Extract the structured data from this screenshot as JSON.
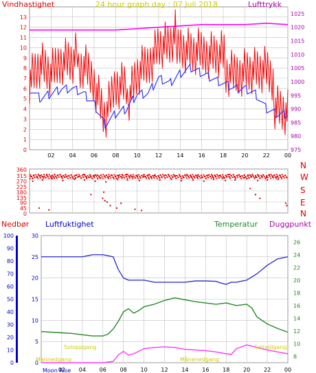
{
  "colors": {
    "background": "#ffffff",
    "plot_bg": "#ffffff",
    "grid": "#bfbfbf",
    "axis": "#9a9a9a",
    "wind": "#ff0000",
    "wind_avg": "#3333ff",
    "pressure": "#ff00ff",
    "direction": "#dd0000",
    "humidity": "#3333cc",
    "temperature": "#228822",
    "dewpoint": "#ff33ff",
    "rain": "#0000cc",
    "sunmoon": "#cccc00",
    "title": "#cccc00",
    "red_label": "#dd0000",
    "green_label": "#228822",
    "purple_label": "#aa00aa",
    "blue_label": "#0000cc"
  },
  "chart_data": [
    {
      "type": "line",
      "title": "24 hour graph day : 07 Juli 2018",
      "left_label": "Vindhastighet",
      "right_label": "Lufttrykk",
      "x_ticks": [
        "02",
        "04",
        "06",
        "08",
        "10",
        "12",
        "14",
        "16",
        "18",
        "20",
        "22",
        "00"
      ],
      "ylim": [
        0,
        14
      ],
      "y_ticks": [
        "0",
        "1",
        "2",
        "3",
        "4",
        "5",
        "6",
        "7",
        "8",
        "9",
        "10",
        "11",
        "12",
        "13"
      ],
      "y2lim": [
        975,
        1027.5
      ],
      "y2_ticks": [
        "975",
        "980",
        "985",
        "990",
        "995",
        "1000",
        "1005",
        "1010",
        "1015",
        "1020",
        "1025"
      ],
      "grid": true,
      "series": [
        {
          "name": "Vindhastighet",
          "axis": "left",
          "style": "gust",
          "x": [
            0,
            1,
            2,
            3,
            4,
            5,
            6,
            7,
            8,
            9,
            10,
            11,
            12,
            13,
            14,
            15,
            16,
            17,
            18,
            19,
            20,
            21,
            22,
            23,
            24
          ],
          "values": [
            8,
            9,
            7.5,
            8.5,
            8,
            9,
            7,
            3,
            6,
            5.5,
            8,
            8.5,
            10,
            9.5,
            11,
            10,
            9.5,
            9,
            8.5,
            8,
            8,
            7.5,
            7,
            5,
            4
          ]
        },
        {
          "name": "Vindhastighet middel",
          "axis": "left",
          "style": "avg",
          "x": [
            0,
            1,
            2,
            3,
            4,
            5,
            6,
            7,
            8,
            9,
            10,
            11,
            12,
            13,
            14,
            15,
            16,
            17,
            18,
            19,
            20,
            21,
            22,
            23,
            24
          ],
          "values": [
            6,
            5,
            5.5,
            6,
            6,
            5.5,
            4.5,
            2.5,
            3.5,
            4,
            5.5,
            5.5,
            7,
            6.5,
            7.5,
            8,
            7.5,
            7,
            6.5,
            6,
            6,
            5.5,
            4,
            3.5,
            3.5
          ]
        },
        {
          "name": "Lufttrykk",
          "axis": "right",
          "style": "pressure",
          "x": [
            0,
            2,
            4,
            6,
            8,
            10,
            12,
            14,
            16,
            18,
            20,
            22,
            24
          ],
          "values": [
            1019,
            1019,
            1019,
            1019,
            1019,
            1019.5,
            1020,
            1020.5,
            1021,
            1021,
            1021,
            1021.5,
            1021
          ]
        }
      ]
    },
    {
      "type": "scatter",
      "ylim": [
        0,
        360
      ],
      "y_ticks": [
        "0",
        "45",
        "90",
        "135",
        "180",
        "225",
        "270",
        "315",
        "360"
      ],
      "visible_y_tick_labels": [
        "360",
        "315",
        "270",
        "225",
        "180",
        "135",
        "90",
        "45",
        "0"
      ],
      "right_labels": [
        "N",
        "W",
        "S",
        "E",
        "N"
      ],
      "grid": true,
      "series": [
        {
          "name": "Vindretning",
          "x": [
            0.1,
            0.4,
            0.7,
            1.0,
            1.3,
            1.6,
            2.0,
            2.3,
            2.6,
            3.0,
            3.3,
            3.6,
            4.0,
            4.3,
            4.6,
            5.0,
            5.3,
            5.6,
            6.0,
            6.3,
            6.6,
            7.0,
            7.3,
            7.6,
            8.0,
            8.3,
            8.6,
            9.0,
            9.3,
            9.6,
            10.0,
            10.3,
            10.6,
            11.0,
            11.3,
            11.6,
            12.0,
            12.3,
            12.6,
            13.0,
            13.3,
            13.6,
            14.0,
            14.3,
            14.6,
            15.0,
            15.3,
            15.6,
            16.0,
            16.3,
            16.6,
            17.0,
            17.3,
            17.6,
            18.0,
            18.3,
            18.6,
            19.0,
            19.3,
            19.6,
            20.0,
            20.3,
            20.6,
            21.0,
            21.3,
            21.6,
            22.0,
            22.3,
            22.6,
            23.0,
            23.3,
            23.6,
            23.9,
            0.3,
            1.2,
            2.1,
            3.1,
            4.2,
            5.1,
            6.1,
            7.1,
            8.2,
            9.1,
            10.2,
            11.1,
            12.1,
            13.2,
            14.1,
            15.2,
            16.2,
            17.1,
            18.2,
            19.1,
            20.2,
            21.2,
            22.1,
            23.1,
            5.7,
            6.8,
            7.2,
            7.5,
            8.1,
            8.5,
            9.8,
            10.4,
            7.0,
            6.9,
            20.5,
            21.0,
            21.4,
            23.8,
            23.9,
            0.9,
            1.8
          ],
          "values": [
            300,
            310,
            290,
            305,
            295,
            315,
            300,
            285,
            310,
            300,
            295,
            305,
            290,
            310,
            300,
            315,
            295,
            290,
            305,
            310,
            285,
            300,
            295,
            310,
            300,
            305,
            290,
            315,
            300,
            295,
            305,
            290,
            300,
            310,
            295,
            305,
            300,
            290,
            310,
            300,
            295,
            305,
            300,
            290,
            310,
            300,
            295,
            305,
            290,
            300,
            310,
            295,
            300,
            305,
            290,
            300,
            315,
            295,
            305,
            300,
            290,
            310,
            300,
            295,
            305,
            300,
            290,
            310,
            300,
            295,
            305,
            300,
            290,
            260,
            270,
            280,
            265,
            275,
            270,
            260,
            255,
            275,
            270,
            265,
            280,
            270,
            275,
            265,
            270,
            260,
            275,
            265,
            270,
            280,
            265,
            270,
            275,
            150,
            120,
            90,
            60,
            40,
            80,
            30,
            20,
            100,
            170,
            200,
            150,
            120,
            80,
            60,
            40,
            25
          ]
        }
      ]
    },
    {
      "type": "line",
      "labels": [
        "Nedbør",
        "Luftfuktighet",
        "Temperatur",
        "Duggpunkt"
      ],
      "x_ticks": [
        "02",
        "04",
        "06",
        "08",
        "10",
        "12",
        "14",
        "16",
        "18",
        "20",
        "22",
        "00"
      ],
      "rain_axis": {
        "ylim": [
          0,
          100
        ],
        "ticks": [
          "0",
          "10",
          "20",
          "30",
          "40",
          "50",
          "60",
          "70",
          "80",
          "90",
          "100"
        ]
      },
      "humidity_axis": {
        "ylim": [
          0,
          30
        ],
        "ticks": [
          "0",
          "5",
          "10",
          "15",
          "20",
          "25",
          "30"
        ]
      },
      "temp_axis": {
        "ylim": [
          7,
          27
        ],
        "ticks": [
          "8",
          "10",
          "12",
          "14",
          "16",
          "18",
          "20",
          "22",
          "24",
          "26"
        ]
      },
      "annotations": [
        "Soloppgang",
        "Solnedgang",
        "Mannedgang",
        "Månenedgang",
        "Moon Rise"
      ],
      "series": [
        {
          "name": "Luftfuktighet",
          "axis": "humidity",
          "x": [
            0,
            1,
            2,
            3,
            4,
            5,
            6,
            7,
            7.5,
            8,
            8.5,
            9,
            9.5,
            10,
            11,
            12,
            13,
            14,
            15,
            16,
            17,
            17.5,
            18,
            18.5,
            19,
            20,
            21,
            22,
            23,
            24
          ],
          "values": [
            25,
            25,
            25,
            25,
            25,
            25.5,
            25.5,
            25,
            22,
            20,
            19.5,
            19.5,
            19.5,
            19.5,
            19,
            19,
            19,
            19,
            19.3,
            19.3,
            19.2,
            18.8,
            18.5,
            19,
            19,
            19.5,
            21,
            23,
            24.5,
            25
          ]
        },
        {
          "name": "Temperatur",
          "axis": "temp",
          "x": [
            0,
            1,
            2,
            3,
            4,
            5,
            6,
            6.5,
            7,
            7.5,
            8,
            8.5,
            9,
            9.5,
            10,
            11,
            12,
            13,
            14,
            15,
            16,
            17,
            18,
            19,
            20,
            20.5,
            21,
            22,
            23,
            24
          ],
          "values": [
            11.9,
            11.8,
            11.7,
            11.6,
            11.4,
            11.2,
            11.2,
            11.5,
            12.3,
            13.5,
            15,
            15.5,
            14.8,
            15.2,
            15.8,
            16.2,
            16.8,
            17.2,
            16.9,
            16.6,
            16.4,
            16.2,
            16.4,
            16.0,
            16.2,
            15.6,
            14.2,
            13.1,
            12.4,
            11.8
          ]
        },
        {
          "name": "Duggpunkt",
          "axis": "temp",
          "x": [
            0,
            1,
            2,
            3,
            4,
            5,
            6,
            7,
            7.5,
            8,
            8.5,
            9,
            10,
            11,
            12,
            13,
            14,
            15,
            16,
            17,
            18,
            18.5,
            19,
            20,
            21,
            22,
            23,
            24
          ],
          "values": [
            7,
            7,
            7,
            7,
            7,
            7,
            7,
            7.2,
            8.2,
            8.8,
            8.2,
            8.4,
            9.2,
            9.4,
            9.5,
            9.4,
            9.1,
            9.0,
            8.9,
            8.7,
            8.4,
            8.3,
            9.2,
            9.8,
            9.4,
            9.0,
            8.7,
            8.4
          ]
        }
      ]
    }
  ]
}
